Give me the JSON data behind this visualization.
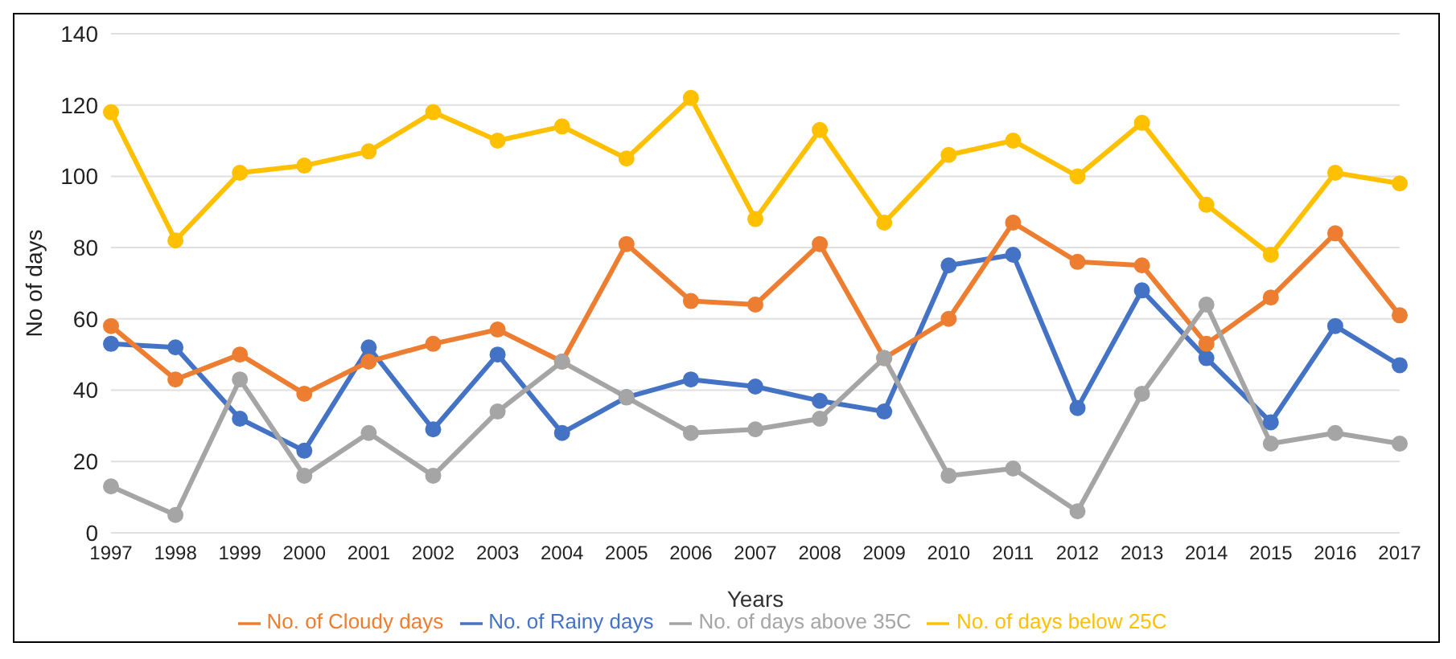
{
  "chart_data": {
    "type": "line",
    "xlabel": "Years",
    "ylabel": "No of days",
    "categories": [
      "1997",
      "1998",
      "1999",
      "2000",
      "2001",
      "2002",
      "2003",
      "2004",
      "2005",
      "2006",
      "2007",
      "2008",
      "2009",
      "2010",
      "2011",
      "2012",
      "2013",
      "2014",
      "2015",
      "2016",
      "2017"
    ],
    "series": [
      {
        "name": "No. of Rainy days",
        "color": "#4472c4",
        "values": [
          53,
          52,
          32,
          23,
          52,
          29,
          50,
          28,
          38,
          43,
          41,
          37,
          34,
          75,
          78,
          35,
          68,
          49,
          31,
          58,
          47
        ]
      },
      {
        "name": "No. of Cloudy days",
        "color": "#ed7d31",
        "values": [
          58,
          43,
          50,
          39,
          48,
          53,
          57,
          48,
          81,
          65,
          64,
          81,
          49,
          60,
          87,
          76,
          75,
          53,
          66,
          84,
          61
        ]
      },
      {
        "name": "No. of days above 35C",
        "color": "#a5a5a5",
        "values": [
          13,
          5,
          43,
          16,
          28,
          16,
          34,
          48,
          38,
          28,
          29,
          32,
          49,
          16,
          18,
          6,
          39,
          64,
          25,
          28,
          25
        ]
      },
      {
        "name": "No. of days below 25C",
        "color": "#ffc000",
        "values": [
          118,
          82,
          101,
          103,
          107,
          118,
          110,
          114,
          105,
          122,
          88,
          113,
          87,
          106,
          110,
          100,
          115,
          92,
          78,
          101,
          98
        ]
      }
    ],
    "ylim": [
      0,
      140
    ],
    "yticks": [
      0,
      20,
      40,
      60,
      80,
      100,
      120,
      140
    ],
    "grid": "y",
    "legend": "bottom",
    "marker": "circle",
    "line_style": "solid"
  }
}
